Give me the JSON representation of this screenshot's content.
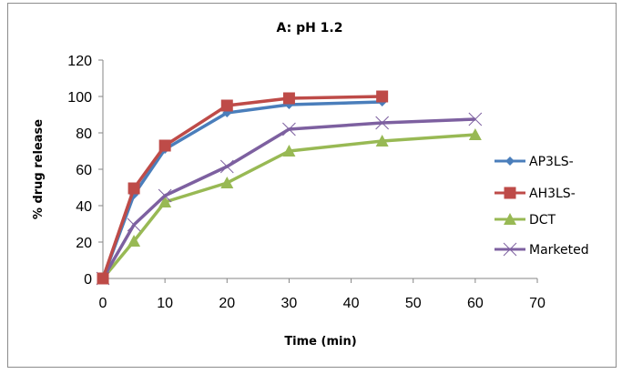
{
  "chart_data": {
    "type": "line",
    "title": "A: pH 1.2",
    "xlabel": "Time (min)",
    "ylabel": "% drug release",
    "xlim": [
      0,
      70
    ],
    "ylim": [
      0,
      120
    ],
    "xticks": [
      0,
      10,
      20,
      30,
      40,
      50,
      60,
      70
    ],
    "yticks": [
      0,
      20,
      40,
      60,
      80,
      100,
      120
    ],
    "grid": false,
    "legend_position": "right",
    "series": [
      {
        "name": "AP3LS-",
        "color": "#4a7ebb",
        "marker": "diamond",
        "x": [
          0,
          5,
          10,
          20,
          30,
          45
        ],
        "y": [
          0,
          46,
          71,
          91,
          95.5,
          97
        ]
      },
      {
        "name": "AH3LS-",
        "color": "#be4b48",
        "marker": "square",
        "x": [
          0,
          5,
          10,
          20,
          30,
          45
        ],
        "y": [
          0,
          49.5,
          73,
          95,
          99,
          100
        ]
      },
      {
        "name": "DCT",
        "color": "#98b954",
        "marker": "triangle",
        "x": [
          0,
          5,
          10,
          20,
          30,
          45,
          60
        ],
        "y": [
          0,
          20.5,
          42,
          52.5,
          70,
          75.5,
          79
        ]
      },
      {
        "name": "Marketed",
        "color": "#7d60a0",
        "marker": "x",
        "x": [
          0,
          5,
          10,
          20,
          30,
          45,
          60
        ],
        "y": [
          0,
          29.5,
          45.5,
          61.5,
          82,
          85.5,
          87.5
        ]
      }
    ]
  }
}
